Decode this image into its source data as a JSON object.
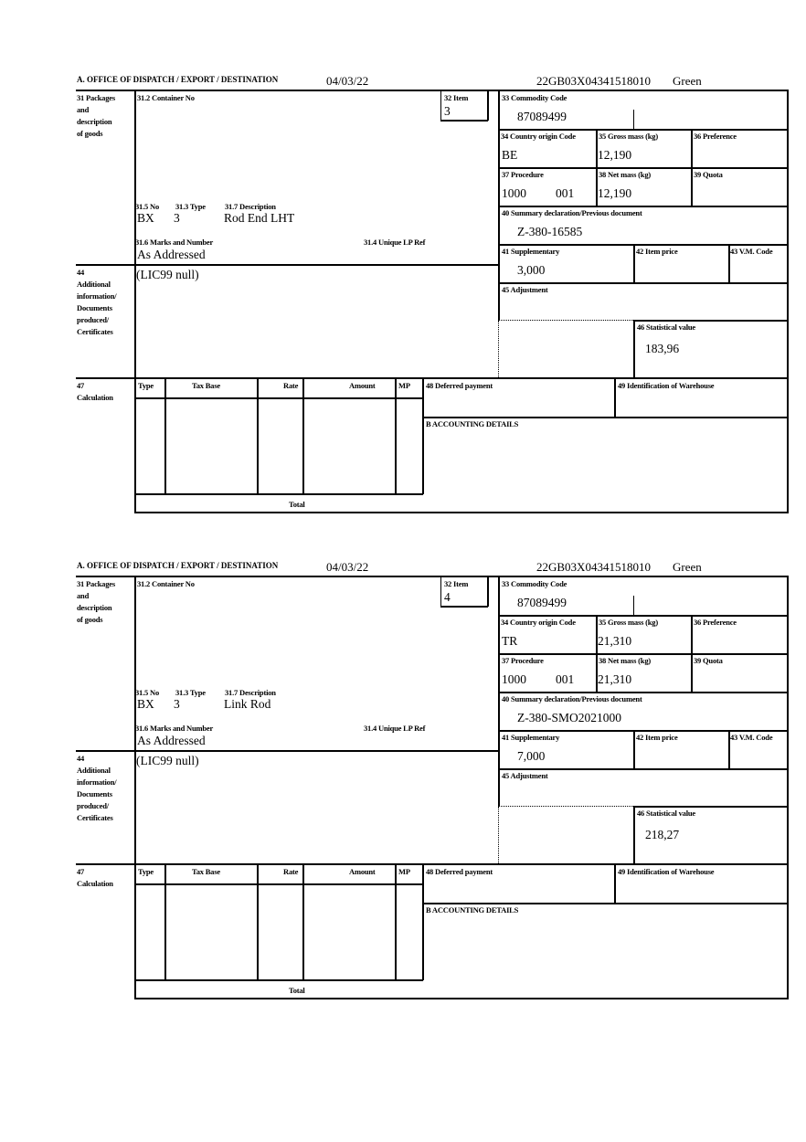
{
  "labels": {
    "office": "A. OFFICE OF DISPATCH / EXPORT / DESTINATION",
    "packages": [
      "31 Packages",
      "and",
      "description",
      "of goods"
    ],
    "container_no": "31.2 Container No",
    "item": "32 Item",
    "no": "31.5 No",
    "type_313": "31.3 Type",
    "description": "31.7 Description",
    "marks": "31.6 Marks and Number",
    "unique_ref": "31.4 Unique LP Ref",
    "additional": [
      "44",
      "Additional",
      "information/",
      "Documents",
      "produced/",
      "Certificates"
    ],
    "commodity_code": "33 Commodity Code",
    "country_origin": "34 Country origin Code",
    "gross_mass": "35 Gross mass (kg)",
    "preference": "36 Preference",
    "procedure": "37 Procedure",
    "net_mass": "38 Net mass (kg)",
    "quota": "39 Quota",
    "summary_decl": "40 Summary declaration/Previous document",
    "supplementary": "41 Supplementary",
    "item_price": "42 Item price",
    "vm_code": "43 V.M. Code",
    "adjustment": "45 Adjustment",
    "statistical_value": "46 Statistical value",
    "calculation": [
      "47",
      "Calculation"
    ],
    "calc_columns": [
      "Type",
      "Tax Base",
      "Rate",
      "Amount",
      "MP"
    ],
    "total": "Total",
    "deferred_payment": "48 Deferred payment",
    "warehouse": "49 Identification of Warehouse",
    "accounting": "B ACCOUNTING DETAILS"
  },
  "forms": [
    {
      "date": "04/03/22",
      "reference": "22GB03X04341518010",
      "status": "Green",
      "item": "3",
      "no": "BX",
      "type": "3",
      "description": "Rod End LHT",
      "marks": "As Addressed",
      "additional_info": "(LIC99 null)",
      "commodity_code": "87089499",
      "country_origin": "BE",
      "gross_mass": "12,190",
      "procedure": "1000",
      "procedure_additional": "001",
      "net_mass": "12,190",
      "summary_decl": "Z-380-16585",
      "supplementary": "3,000",
      "statistical_value": "183,96"
    },
    {
      "date": "04/03/22",
      "reference": "22GB03X04341518010",
      "status": "Green",
      "item": "4",
      "no": "BX",
      "type": "3",
      "description": "Link Rod",
      "marks": "As Addressed",
      "additional_info": "(LIC99 null)",
      "commodity_code": "87089499",
      "country_origin": "TR",
      "gross_mass": "21,310",
      "procedure": "1000",
      "procedure_additional": "001",
      "net_mass": "21,310",
      "summary_decl": "Z-380-SMO2021000",
      "supplementary": "7,000",
      "statistical_value": "218,27"
    }
  ]
}
